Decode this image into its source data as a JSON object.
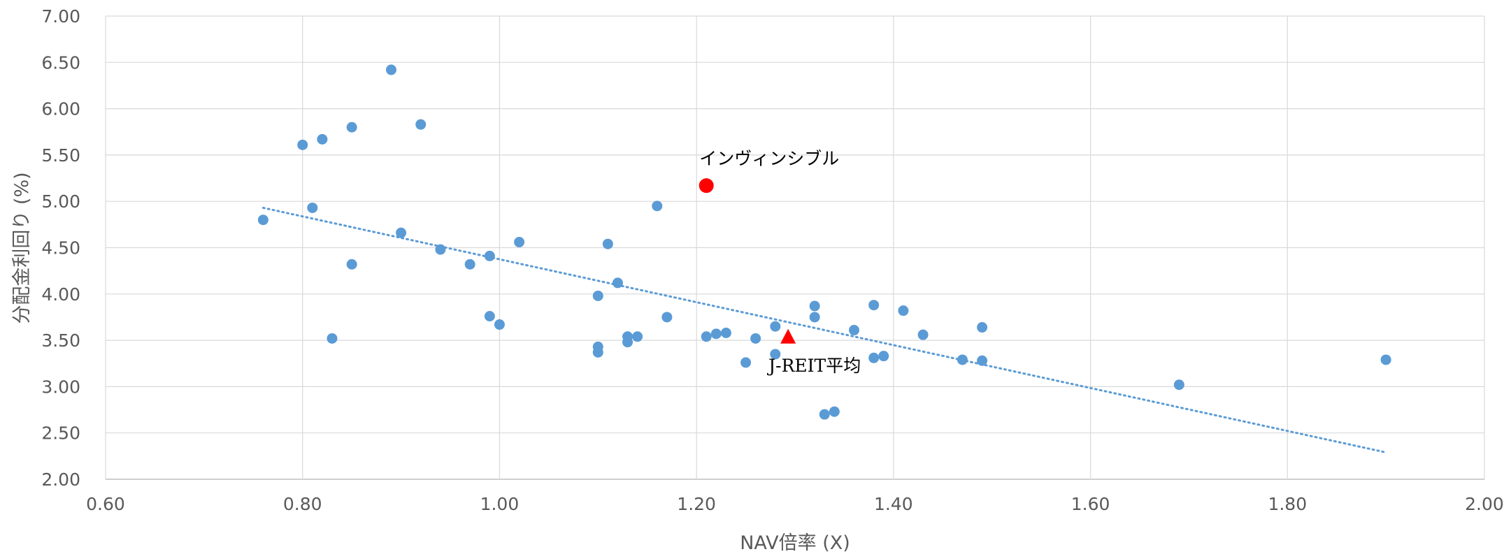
{
  "chart_data": {
    "type": "scatter",
    "title": "",
    "xlabel": "NAV倍率 (X)",
    "ylabel": "分配金利回り (%)",
    "xlim": [
      0.6,
      2.0
    ],
    "ylim": [
      2.0,
      7.0
    ],
    "x_ticks": [
      "0.60",
      "0.80",
      "1.00",
      "1.20",
      "1.40",
      "1.60",
      "1.80",
      "2.00"
    ],
    "y_ticks": [
      "2.00",
      "2.50",
      "3.00",
      "3.50",
      "4.00",
      "4.50",
      "5.00",
      "5.50",
      "6.00",
      "6.50",
      "7.00"
    ],
    "grid": true,
    "legend": "none",
    "series": [
      {
        "points": [
          [
            0.76,
            4.8
          ],
          [
            0.8,
            5.61
          ],
          [
            0.81,
            4.93
          ],
          [
            0.82,
            5.67
          ],
          [
            0.83,
            3.52
          ],
          [
            0.85,
            5.8
          ],
          [
            0.85,
            4.32
          ],
          [
            0.89,
            6.42
          ],
          [
            0.9,
            4.66
          ],
          [
            0.92,
            5.83
          ],
          [
            0.94,
            4.48
          ],
          [
            0.97,
            4.32
          ],
          [
            0.99,
            4.41
          ],
          [
            0.99,
            3.76
          ],
          [
            1.0,
            3.67
          ],
          [
            1.02,
            4.56
          ],
          [
            1.1,
            3.98
          ],
          [
            1.1,
            3.43
          ],
          [
            1.1,
            3.37
          ],
          [
            1.11,
            4.54
          ],
          [
            1.12,
            4.12
          ],
          [
            1.13,
            3.54
          ],
          [
            1.13,
            3.48
          ],
          [
            1.14,
            3.54
          ],
          [
            1.16,
            4.95
          ],
          [
            1.17,
            3.75
          ],
          [
            1.21,
            3.54
          ],
          [
            1.22,
            3.57
          ],
          [
            1.23,
            3.58
          ],
          [
            1.25,
            3.26
          ],
          [
            1.26,
            3.52
          ],
          [
            1.28,
            3.65
          ],
          [
            1.28,
            3.35
          ],
          [
            1.32,
            3.87
          ],
          [
            1.32,
            3.75
          ],
          [
            1.33,
            2.7
          ],
          [
            1.34,
            2.73
          ],
          [
            1.36,
            3.61
          ],
          [
            1.38,
            3.88
          ],
          [
            1.38,
            3.31
          ],
          [
            1.39,
            3.33
          ],
          [
            1.41,
            3.82
          ],
          [
            1.43,
            3.56
          ],
          [
            1.47,
            3.29
          ],
          [
            1.49,
            3.64
          ],
          [
            1.49,
            3.28
          ],
          [
            1.69,
            3.02
          ],
          [
            1.9,
            3.29
          ]
        ],
        "color": "#5b9bd5"
      }
    ],
    "trendline": {
      "x": [
        0.76,
        1.9
      ],
      "y": [
        4.93,
        2.29
      ],
      "color": "#5b9bd5",
      "style": "dotted"
    },
    "highlights": [
      {
        "label": "インヴィンシブル",
        "x": 1.21,
        "y": 5.17,
        "marker": "circle",
        "color": "#ff0000"
      },
      {
        "label": "J-REIT平均",
        "x": 1.293,
        "y": 3.54,
        "marker": "triangle",
        "color": "#ff0000"
      }
    ],
    "colors": {
      "grid": "#d9d9d9",
      "axis": "#bfbfbf",
      "text": "#595959"
    }
  }
}
